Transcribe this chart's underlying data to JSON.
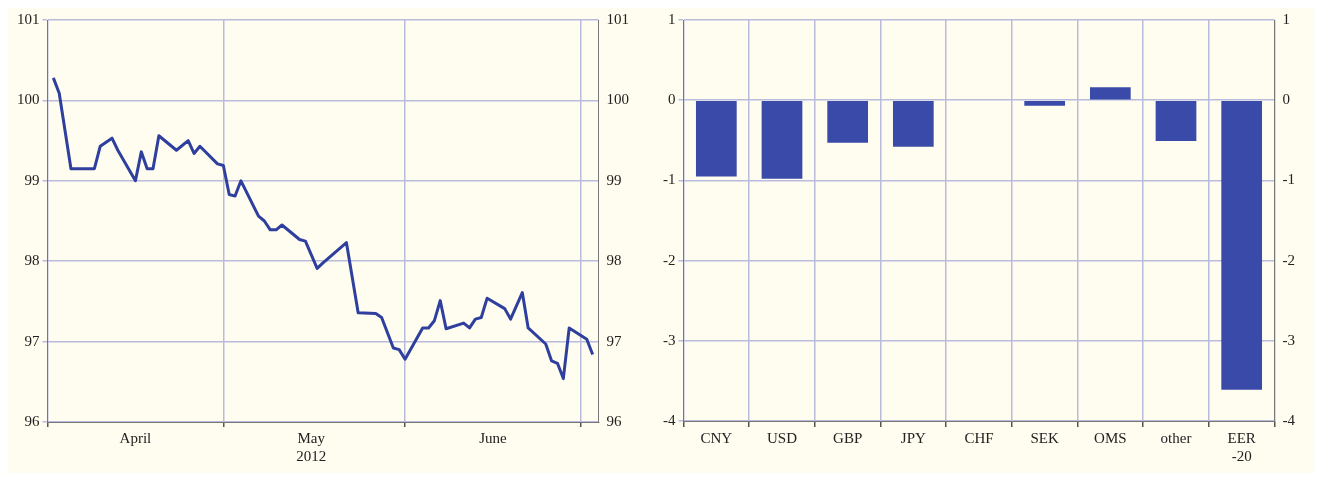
{
  "chart_data": [
    {
      "type": "line",
      "color": "#2e3f9e",
      "grid": true,
      "legend": false,
      "marker": "none",
      "line_style": "solid",
      "x": [
        "2012-04-02",
        "2012-04-03",
        "2012-04-05",
        "2012-04-09",
        "2012-04-10",
        "2012-04-12",
        "2012-04-13",
        "2012-04-16",
        "2012-04-17",
        "2012-04-18",
        "2012-04-19",
        "2012-04-20",
        "2012-04-23",
        "2012-04-25",
        "2012-04-26",
        "2012-04-27",
        "2012-04-30",
        "2012-05-01",
        "2012-05-02",
        "2012-05-03",
        "2012-05-04",
        "2012-05-07",
        "2012-05-08",
        "2012-05-09",
        "2012-05-10",
        "2012-05-11",
        "2012-05-14",
        "2012-05-15",
        "2012-05-17",
        "2012-05-18",
        "2012-05-22",
        "2012-05-24",
        "2012-05-27",
        "2012-05-28",
        "2012-05-30",
        "2012-05-31",
        "2012-06-01",
        "2012-06-04",
        "2012-06-05",
        "2012-06-06",
        "2012-06-07",
        "2012-06-08",
        "2012-06-11",
        "2012-06-12",
        "2012-06-13",
        "2012-06-14",
        "2012-06-15",
        "2012-06-18",
        "2012-06-19",
        "2012-06-21",
        "2012-06-22",
        "2012-06-25",
        "2012-06-26",
        "2012-06-27",
        "2012-06-28",
        "2012-06-29",
        "2012-07-02",
        "2012-07-03"
      ],
      "values": [
        100.28,
        100.09,
        99.15,
        99.15,
        99.43,
        99.53,
        99.38,
        99.0,
        99.36,
        99.15,
        99.15,
        99.56,
        99.38,
        99.5,
        99.34,
        99.43,
        99.21,
        99.19,
        98.83,
        98.81,
        99.0,
        98.56,
        98.5,
        98.39,
        98.39,
        98.45,
        98.27,
        98.25,
        97.91,
        97.98,
        98.23,
        97.36,
        97.35,
        97.3,
        96.92,
        96.9,
        96.78,
        97.17,
        97.17,
        97.26,
        97.51,
        97.16,
        97.23,
        97.17,
        97.28,
        97.3,
        97.54,
        97.41,
        97.28,
        97.61,
        97.17,
        96.97,
        96.76,
        96.73,
        96.54,
        97.17,
        97.03,
        96.84
      ],
      "xlim": [
        "2012-04-01",
        "2012-07-04"
      ],
      "xticks": [
        {
          "value": "2012-04-01",
          "label": null
        },
        {
          "value": "2012-04-16",
          "label": "April"
        },
        {
          "value": "2012-05-01",
          "label": null
        },
        {
          "value": "2012-05-16",
          "label": "May\n2012"
        },
        {
          "value": "2012-06-01",
          "label": null
        },
        {
          "value": "2012-06-16",
          "label": "June"
        },
        {
          "value": "2012-07-01",
          "label": null
        }
      ],
      "ylim": [
        96,
        101
      ],
      "yticks": [
        96,
        97,
        98,
        99,
        100,
        101
      ],
      "y2lim": [
        96,
        101
      ],
      "y2ticks": [
        96,
        97,
        98,
        99,
        100,
        101
      ]
    },
    {
      "type": "bar",
      "color": "#3a4aa8",
      "grid": true,
      "legend": false,
      "categories": [
        "CNY",
        "USD",
        "GBP",
        "JPY",
        "CHF",
        "SEK",
        "OMS",
        "other",
        "EER\n-20"
      ],
      "values": [
        -0.95,
        -0.98,
        -0.53,
        -0.58,
        null,
        -0.07,
        0.16,
        -0.51,
        -3.61
      ],
      "ylim": [
        -4,
        1
      ],
      "yticks": [
        -4,
        -3,
        -2,
        -1,
        0,
        1
      ],
      "y2lim": [
        -4,
        1
      ],
      "y2ticks": [
        -4,
        -3,
        -2,
        -1,
        0,
        1
      ]
    }
  ]
}
